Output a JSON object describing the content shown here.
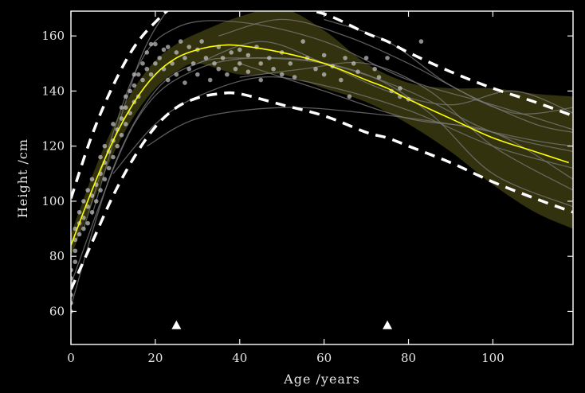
{
  "chart_data": {
    "type": "line",
    "title": "",
    "xlabel": "Age /years",
    "ylabel": "Height /cm",
    "xlim": [
      0,
      119
    ],
    "ylim": [
      48,
      169
    ],
    "xticks": [
      0,
      20,
      40,
      60,
      80,
      100
    ],
    "yticks": [
      60,
      80,
      100,
      120,
      140,
      160
    ],
    "grid": false,
    "colors": {
      "background": "#000000",
      "mean": "#ffff00",
      "band": "#3b3b12",
      "bounds": "#ffffff",
      "trajectories": "#7a7a7a",
      "points": "#c8c8c8"
    },
    "mean_curve": [
      [
        0,
        84
      ],
      [
        5,
        104
      ],
      [
        10,
        122
      ],
      [
        15,
        136
      ],
      [
        20,
        146
      ],
      [
        25,
        152
      ],
      [
        30,
        155
      ],
      [
        35,
        156.5
      ],
      [
        40,
        156.5
      ],
      [
        50,
        154
      ],
      [
        60,
        150
      ],
      [
        70,
        144
      ],
      [
        75,
        141
      ],
      [
        80,
        137
      ],
      [
        90,
        130
      ],
      [
        100,
        123
      ],
      [
        110,
        118
      ],
      [
        118,
        114
      ]
    ],
    "band_upper": [
      [
        0,
        88
      ],
      [
        5,
        109
      ],
      [
        10,
        127
      ],
      [
        15,
        141
      ],
      [
        20,
        151
      ],
      [
        25,
        157
      ],
      [
        30,
        161
      ],
      [
        40,
        167
      ],
      [
        50,
        170
      ],
      [
        60,
        162
      ],
      [
        70,
        150
      ],
      [
        80,
        143
      ],
      [
        90,
        141
      ],
      [
        100,
        141
      ],
      [
        110,
        139
      ],
      [
        119,
        138
      ]
    ],
    "band_lower": [
      [
        0,
        80
      ],
      [
        5,
        99
      ],
      [
        10,
        117
      ],
      [
        15,
        131
      ],
      [
        20,
        141
      ],
      [
        25,
        147
      ],
      [
        30,
        150
      ],
      [
        40,
        146
      ],
      [
        50,
        146
      ],
      [
        60,
        141
      ],
      [
        70,
        136
      ],
      [
        80,
        128
      ],
      [
        90,
        118
      ],
      [
        100,
        106
      ],
      [
        110,
        96
      ],
      [
        119,
        90
      ]
    ],
    "upper_bound": [
      [
        0,
        101
      ],
      [
        5,
        124
      ],
      [
        10,
        142
      ],
      [
        15,
        156
      ],
      [
        20,
        165
      ],
      [
        25,
        171
      ],
      [
        35,
        175
      ],
      [
        50,
        171
      ],
      [
        60,
        168
      ],
      [
        70,
        161
      ],
      [
        75,
        158
      ],
      [
        80,
        154
      ],
      [
        90,
        147
      ],
      [
        100,
        141
      ],
      [
        110,
        136
      ],
      [
        119,
        131
      ]
    ],
    "lower_bound": [
      [
        0,
        68
      ],
      [
        5,
        85
      ],
      [
        10,
        102
      ],
      [
        15,
        116
      ],
      [
        20,
        127
      ],
      [
        25,
        134
      ],
      [
        30,
        137.5
      ],
      [
        35,
        139
      ],
      [
        40,
        139
      ],
      [
        50,
        135
      ],
      [
        60,
        131
      ],
      [
        70,
        125
      ],
      [
        75,
        123
      ],
      [
        80,
        120
      ],
      [
        90,
        114
      ],
      [
        100,
        107
      ],
      [
        110,
        101
      ],
      [
        119,
        96
      ]
    ],
    "markers": [
      [
        25,
        55
      ],
      [
        75,
        55
      ]
    ],
    "trajectories": [
      [
        [
          0,
          62
        ],
        [
          10,
          112
        ],
        [
          20,
          140
        ],
        [
          30,
          150
        ],
        [
          40,
          152
        ],
        [
          60,
          150
        ],
        [
          80,
          140
        ],
        [
          100,
          125
        ],
        [
          119,
          118
        ]
      ],
      [
        [
          3,
          90
        ],
        [
          15,
          146
        ],
        [
          25,
          163
        ],
        [
          40,
          165
        ],
        [
          60,
          158
        ],
        [
          80,
          144
        ],
        [
          100,
          135
        ],
        [
          119,
          126
        ]
      ],
      [
        [
          10,
          110
        ],
        [
          20,
          128
        ],
        [
          30,
          138
        ],
        [
          45,
          145
        ],
        [
          60,
          142
        ],
        [
          80,
          133
        ],
        [
          100,
          120
        ],
        [
          119,
          112
        ]
      ],
      [
        [
          18,
          120
        ],
        [
          30,
          130
        ],
        [
          50,
          134
        ],
        [
          70,
          132
        ],
        [
          90,
          128
        ],
        [
          110,
          122
        ],
        [
          119,
          120
        ]
      ],
      [
        [
          0,
          70
        ],
        [
          15,
          128
        ],
        [
          30,
          148
        ],
        [
          50,
          152
        ],
        [
          70,
          146
        ],
        [
          85,
          132
        ],
        [
          100,
          110
        ],
        [
          119,
          98
        ]
      ],
      [
        [
          30,
          150
        ],
        [
          45,
          158
        ],
        [
          60,
          150
        ],
        [
          75,
          140
        ],
        [
          90,
          135
        ],
        [
          105,
          140
        ],
        [
          119,
          132
        ]
      ],
      [
        [
          35,
          160
        ],
        [
          50,
          166
        ],
        [
          65,
          160
        ],
        [
          80,
          150
        ],
        [
          95,
          138
        ],
        [
          110,
          128
        ],
        [
          119,
          125
        ]
      ],
      [
        [
          40,
          145
        ],
        [
          55,
          148
        ],
        [
          70,
          150
        ],
        [
          85,
          140
        ],
        [
          100,
          120
        ],
        [
          119,
          104
        ]
      ],
      [
        [
          5,
          95
        ],
        [
          16,
          150
        ],
        [
          24,
          172
        ]
      ],
      [
        [
          60,
          166
        ],
        [
          75,
          158
        ],
        [
          90,
          142
        ],
        [
          105,
          132
        ],
        [
          119,
          134
        ]
      ],
      [
        [
          40,
          150
        ],
        [
          60,
          140
        ],
        [
          80,
          130
        ],
        [
          100,
          125
        ],
        [
          119,
          108
        ]
      ]
    ],
    "points": [
      [
        0,
        60
      ],
      [
        0,
        63
      ],
      [
        0,
        66
      ],
      [
        0,
        70
      ],
      [
        0,
        72
      ],
      [
        0,
        75
      ],
      [
        1,
        78
      ],
      [
        1,
        82
      ],
      [
        1,
        86
      ],
      [
        1,
        90
      ],
      [
        2,
        88
      ],
      [
        2,
        92
      ],
      [
        2,
        96
      ],
      [
        3,
        90
      ],
      [
        3,
        94
      ],
      [
        3,
        100
      ],
      [
        4,
        92
      ],
      [
        4,
        98
      ],
      [
        4,
        104
      ],
      [
        5,
        96
      ],
      [
        5,
        102
      ],
      [
        5,
        108
      ],
      [
        6,
        100
      ],
      [
        6,
        106
      ],
      [
        7,
        104
      ],
      [
        7,
        110
      ],
      [
        7,
        116
      ],
      [
        8,
        108
      ],
      [
        8,
        114
      ],
      [
        8,
        120
      ],
      [
        9,
        112
      ],
      [
        9,
        118
      ],
      [
        10,
        116
      ],
      [
        10,
        122
      ],
      [
        10,
        128
      ],
      [
        11,
        120
      ],
      [
        11,
        126
      ],
      [
        12,
        124
      ],
      [
        12,
        130
      ],
      [
        12,
        134
      ],
      [
        13,
        128
      ],
      [
        13,
        134
      ],
      [
        13,
        138
      ],
      [
        14,
        132
      ],
      [
        14,
        140
      ],
      [
        15,
        136
      ],
      [
        15,
        142
      ],
      [
        15,
        146
      ],
      [
        16,
        138
      ],
      [
        16,
        146
      ],
      [
        17,
        144
      ],
      [
        17,
        150
      ],
      [
        18,
        148
      ],
      [
        18,
        154
      ],
      [
        19,
        146
      ],
      [
        19,
        157
      ],
      [
        20,
        150
      ],
      [
        20,
        157
      ],
      [
        21,
        152
      ],
      [
        22,
        148
      ],
      [
        22,
        155
      ],
      [
        23,
        144
      ],
      [
        23,
        156
      ],
      [
        24,
        150
      ],
      [
        25,
        146
      ],
      [
        25,
        154
      ],
      [
        26,
        158
      ],
      [
        27,
        143
      ],
      [
        27,
        152
      ],
      [
        28,
        148
      ],
      [
        28,
        156
      ],
      [
        29,
        150
      ],
      [
        30,
        146
      ],
      [
        30,
        155
      ],
      [
        31,
        158
      ],
      [
        32,
        152
      ],
      [
        33,
        144
      ],
      [
        34,
        150
      ],
      [
        35,
        148
      ],
      [
        35,
        156
      ],
      [
        36,
        152
      ],
      [
        37,
        146
      ],
      [
        38,
        154
      ],
      [
        39,
        148
      ],
      [
        40,
        150
      ],
      [
        40,
        155
      ],
      [
        42,
        147
      ],
      [
        42,
        153
      ],
      [
        44,
        156
      ],
      [
        45,
        144
      ],
      [
        45,
        150
      ],
      [
        47,
        152
      ],
      [
        48,
        148
      ],
      [
        50,
        146
      ],
      [
        50,
        154
      ],
      [
        52,
        150
      ],
      [
        53,
        145
      ],
      [
        55,
        158
      ],
      [
        56,
        152
      ],
      [
        58,
        148
      ],
      [
        60,
        146
      ],
      [
        60,
        153
      ],
      [
        62,
        149
      ],
      [
        64,
        144
      ],
      [
        65,
        152
      ],
      [
        66,
        138
      ],
      [
        67,
        150
      ],
      [
        68,
        147
      ],
      [
        70,
        152
      ],
      [
        72,
        148
      ],
      [
        73,
        145
      ],
      [
        75,
        152
      ],
      [
        76,
        140
      ],
      [
        78,
        138
      ],
      [
        78,
        141
      ],
      [
        80,
        137
      ],
      [
        83,
        158
      ]
    ]
  }
}
